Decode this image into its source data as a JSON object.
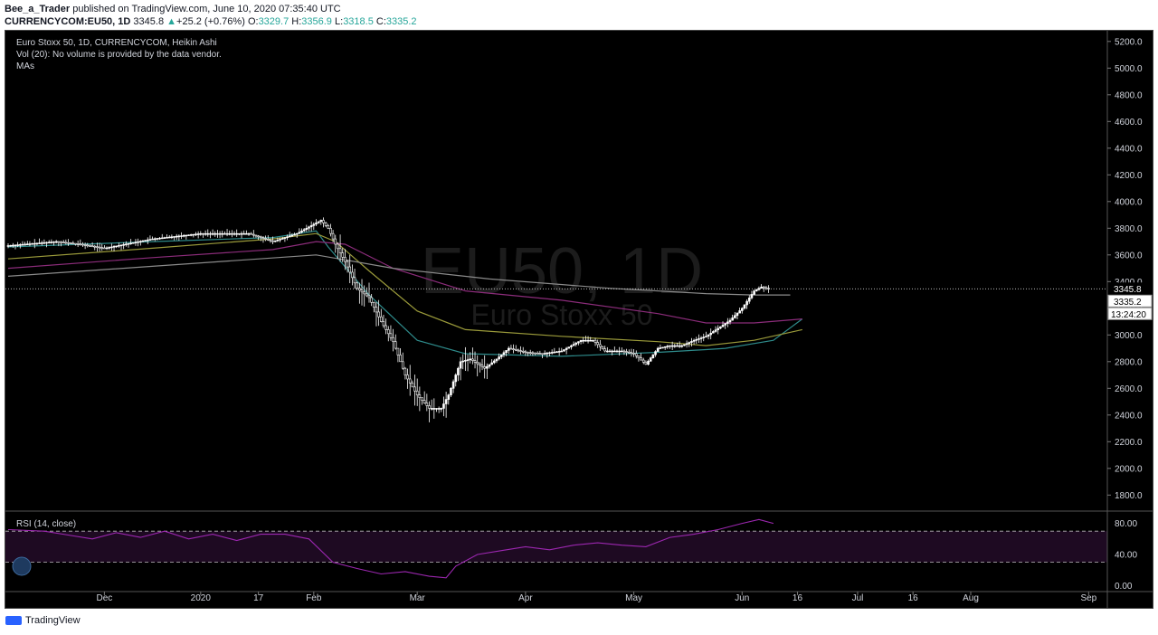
{
  "header": {
    "author": "Bee_a_Trader",
    "published": " published on TradingView.com, June 10, 2020 07:35:40 UTC",
    "symbol": "CURRENCYCOM:EU50, 1D",
    "last": "3345.8",
    "change_arrow": "▲",
    "change": "+25.2 (+0.76%)",
    "o_label": "O:",
    "o": "3329.7",
    "h_label": "H:",
    "h": "3356.9",
    "l_label": "L:",
    "l": "3318.5",
    "c_label": "C:",
    "c": "3335.2"
  },
  "legend": {
    "title": "Euro Stoxx 50, 1D, CURRENCYCOM, Heikin Ashi",
    "vol": "Vol (20): No volume is provided by the data vendor.",
    "mas": "MAs",
    "rsi": "RSI (14, close)"
  },
  "watermark": {
    "symbol": "EU50, 1D",
    "name": "Euro Stoxx 50"
  },
  "footer": {
    "brand": "TradingView"
  },
  "colors": {
    "background": "#000000",
    "candle": "#ffffff",
    "ma_teal": "#2e8b8b",
    "ma_olive": "#9a9a3a",
    "ma_purple": "#8b2c7a",
    "ma_gray": "#8a8a8a",
    "rsi_line": "#9c27b0",
    "rsi_band": "#1e0a22",
    "axis_text": "#d1d4dc"
  },
  "chart_data": {
    "type": "candlestick",
    "style": "Heikin Ashi",
    "price_axis": {
      "ticks": [
        "5200.0",
        "5000.0",
        "4800.0",
        "4600.0",
        "4400.0",
        "4200.0",
        "4000.0",
        "3800.0",
        "3600.0",
        "3400.0",
        "3200.0",
        "3000.0",
        "2800.0",
        "2600.0",
        "2400.0",
        "2200.0",
        "2000.0",
        "1800.0"
      ],
      "range": [
        1680,
        5280
      ]
    },
    "time_axis": {
      "ticks": [
        "Dec",
        "2020",
        "17",
        "Feb",
        "Mar",
        "Apr",
        "May",
        "Jun",
        "16",
        "Jul",
        "16",
        "Aug",
        "Sep"
      ]
    },
    "current_price": "3345.8",
    "close_price": "3335.2",
    "countdown": "13:24:20",
    "ma_series": [
      {
        "color": "ma_teal",
        "points": [
          [
            0,
            3660
          ],
          [
            60,
            3700
          ],
          [
            110,
            3730
          ],
          [
            128,
            3780
          ],
          [
            133,
            3660
          ],
          [
            150,
            3300
          ],
          [
            170,
            2960
          ],
          [
            190,
            2860
          ],
          [
            230,
            2840
          ],
          [
            270,
            2870
          ],
          [
            290,
            2890
          ],
          [
            298,
            2900
          ],
          [
            318,
            2960
          ],
          [
            330,
            3120
          ]
        ]
      },
      {
        "color": "ma_olive",
        "points": [
          [
            0,
            3570
          ],
          [
            60,
            3650
          ],
          [
            110,
            3720
          ],
          [
            128,
            3760
          ],
          [
            136,
            3700
          ],
          [
            150,
            3480
          ],
          [
            170,
            3180
          ],
          [
            190,
            3040
          ],
          [
            230,
            2990
          ],
          [
            270,
            2950
          ],
          [
            290,
            2920
          ],
          [
            310,
            2960
          ],
          [
            330,
            3040
          ]
        ]
      },
      {
        "color": "ma_purple",
        "points": [
          [
            0,
            3500
          ],
          [
            60,
            3580
          ],
          [
            110,
            3640
          ],
          [
            128,
            3700
          ],
          [
            140,
            3680
          ],
          [
            160,
            3500
          ],
          [
            190,
            3330
          ],
          [
            230,
            3260
          ],
          [
            270,
            3160
          ],
          [
            290,
            3090
          ],
          [
            310,
            3090
          ],
          [
            330,
            3120
          ]
        ]
      },
      {
        "color": "ma_gray",
        "points": [
          [
            0,
            3440
          ],
          [
            128,
            3600
          ],
          [
            160,
            3500
          ],
          [
            200,
            3420
          ],
          [
            250,
            3350
          ],
          [
            290,
            3310
          ],
          [
            310,
            3300
          ],
          [
            325,
            3300
          ]
        ]
      }
    ],
    "price_path": [
      [
        0,
        3670
      ],
      [
        20,
        3700
      ],
      [
        30,
        3680
      ],
      [
        40,
        3650
      ],
      [
        60,
        3720
      ],
      [
        80,
        3760
      ],
      [
        100,
        3760
      ],
      [
        110,
        3700
      ],
      [
        120,
        3760
      ],
      [
        130,
        3860
      ],
      [
        133,
        3800
      ],
      [
        136,
        3680
      ],
      [
        140,
        3550
      ],
      [
        145,
        3350
      ],
      [
        150,
        3280
      ],
      [
        155,
        3100
      ],
      [
        160,
        2950
      ],
      [
        165,
        2700
      ],
      [
        170,
        2550
      ],
      [
        175,
        2450
      ],
      [
        180,
        2450
      ],
      [
        183,
        2550
      ],
      [
        188,
        2800
      ],
      [
        192,
        2820
      ],
      [
        198,
        2750
      ],
      [
        203,
        2820
      ],
      [
        208,
        2900
      ],
      [
        215,
        2870
      ],
      [
        222,
        2860
      ],
      [
        230,
        2880
      ],
      [
        238,
        2960
      ],
      [
        243,
        2960
      ],
      [
        248,
        2880
      ],
      [
        255,
        2880
      ],
      [
        260,
        2860
      ],
      [
        265,
        2780
      ],
      [
        270,
        2900
      ],
      [
        275,
        2920
      ],
      [
        280,
        2920
      ],
      [
        285,
        2960
      ],
      [
        290,
        2990
      ],
      [
        295,
        3050
      ],
      [
        300,
        3110
      ],
      [
        305,
        3200
      ],
      [
        310,
        3330
      ],
      [
        313,
        3360
      ],
      [
        316,
        3345
      ]
    ],
    "rsi": {
      "axis_ticks": [
        "80.00",
        "40.00",
        "0.00"
      ],
      "upper_band": 70,
      "lower_band": 30,
      "points": [
        [
          0,
          72
        ],
        [
          15,
          70
        ],
        [
          25,
          65
        ],
        [
          35,
          60
        ],
        [
          45,
          68
        ],
        [
          55,
          62
        ],
        [
          65,
          70
        ],
        [
          75,
          60
        ],
        [
          85,
          66
        ],
        [
          95,
          58
        ],
        [
          105,
          66
        ],
        [
          115,
          66
        ],
        [
          125,
          60
        ],
        [
          135,
          30
        ],
        [
          145,
          22
        ],
        [
          155,
          15
        ],
        [
          165,
          18
        ],
        [
          175,
          12
        ],
        [
          182,
          10
        ],
        [
          186,
          25
        ],
        [
          195,
          40
        ],
        [
          205,
          45
        ],
        [
          215,
          50
        ],
        [
          225,
          46
        ],
        [
          235,
          52
        ],
        [
          245,
          55
        ],
        [
          255,
          52
        ],
        [
          265,
          50
        ],
        [
          275,
          62
        ],
        [
          285,
          66
        ],
        [
          295,
          72
        ],
        [
          305,
          80
        ],
        [
          312,
          85
        ],
        [
          318,
          80
        ]
      ]
    }
  }
}
